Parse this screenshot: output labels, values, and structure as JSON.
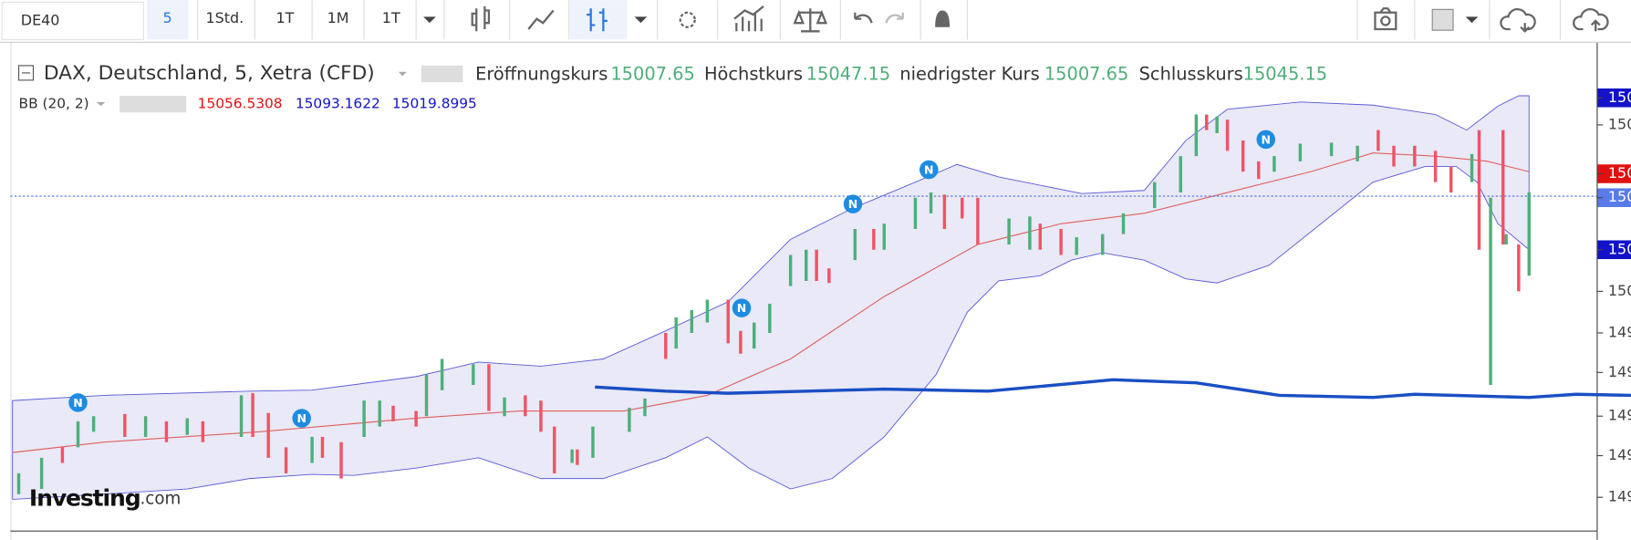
{
  "toolbar": {
    "symbol": "DE40",
    "intervals": [
      "5",
      "1Std.",
      "1T",
      "1M",
      "1T"
    ]
  },
  "legend": {
    "title": "DAX, Deutschland, 5, Xetra (CFD)",
    "ohlc": [
      {
        "label": "Eröffnungskurs",
        "value": "15007.65"
      },
      {
        "label": "Höchstkurs",
        "value": "15047.15"
      },
      {
        "label": "niedrigster Kurs",
        "value": "15007.65"
      },
      {
        "label": "Schlusskurs",
        "value": "15045.15"
      }
    ]
  },
  "indicator": {
    "name": "BB (20, 2)",
    "values": [
      "15056.5308",
      "15093.1622",
      "15019.8995"
    ]
  },
  "axis_labels": [
    "150",
    "150",
    "150",
    "150",
    "150",
    "150",
    "149",
    "149",
    "149",
    "149",
    "149"
  ],
  "news_marker": "N",
  "logo": {
    "brand": "Investing",
    "suffix": ".com"
  }
}
